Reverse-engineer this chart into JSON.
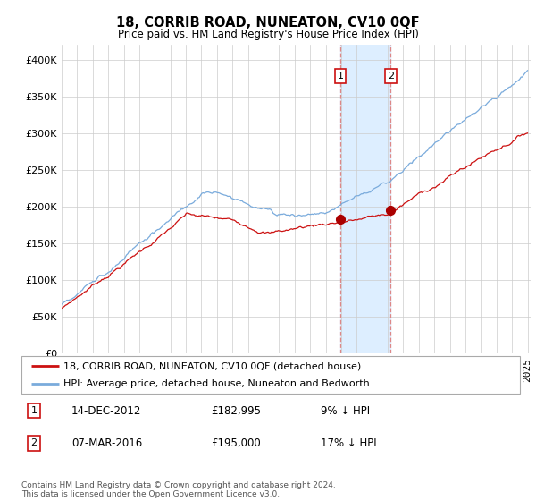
{
  "title": "18, CORRIB ROAD, NUNEATON, CV10 0QF",
  "subtitle": "Price paid vs. HM Land Registry's House Price Index (HPI)",
  "legend_line1": "18, CORRIB ROAD, NUNEATON, CV10 0QF (detached house)",
  "legend_line2": "HPI: Average price, detached house, Nuneaton and Bedworth",
  "transaction1_date": "14-DEC-2012",
  "transaction1_price": "£182,995",
  "transaction1_hpi": "9% ↓ HPI",
  "transaction1_year": 2012.96,
  "transaction1_value": 182995,
  "transaction2_date": "07-MAR-2016",
  "transaction2_price": "£195,000",
  "transaction2_hpi": "17% ↓ HPI",
  "transaction2_year": 2016.18,
  "transaction2_value": 195000,
  "hpi_color": "#7aabdc",
  "price_color": "#cc1111",
  "marker_color": "#aa0000",
  "highlight_color": "#ddeeff",
  "vline_color": "#dd8888",
  "footnote": "Contains HM Land Registry data © Crown copyright and database right 2024.\nThis data is licensed under the Open Government Licence v3.0.",
  "ylim": [
    0,
    420000
  ],
  "yticks": [
    0,
    50000,
    100000,
    150000,
    200000,
    250000,
    300000,
    350000,
    400000
  ],
  "xmin": 1995.0,
  "xmax": 2025.2
}
